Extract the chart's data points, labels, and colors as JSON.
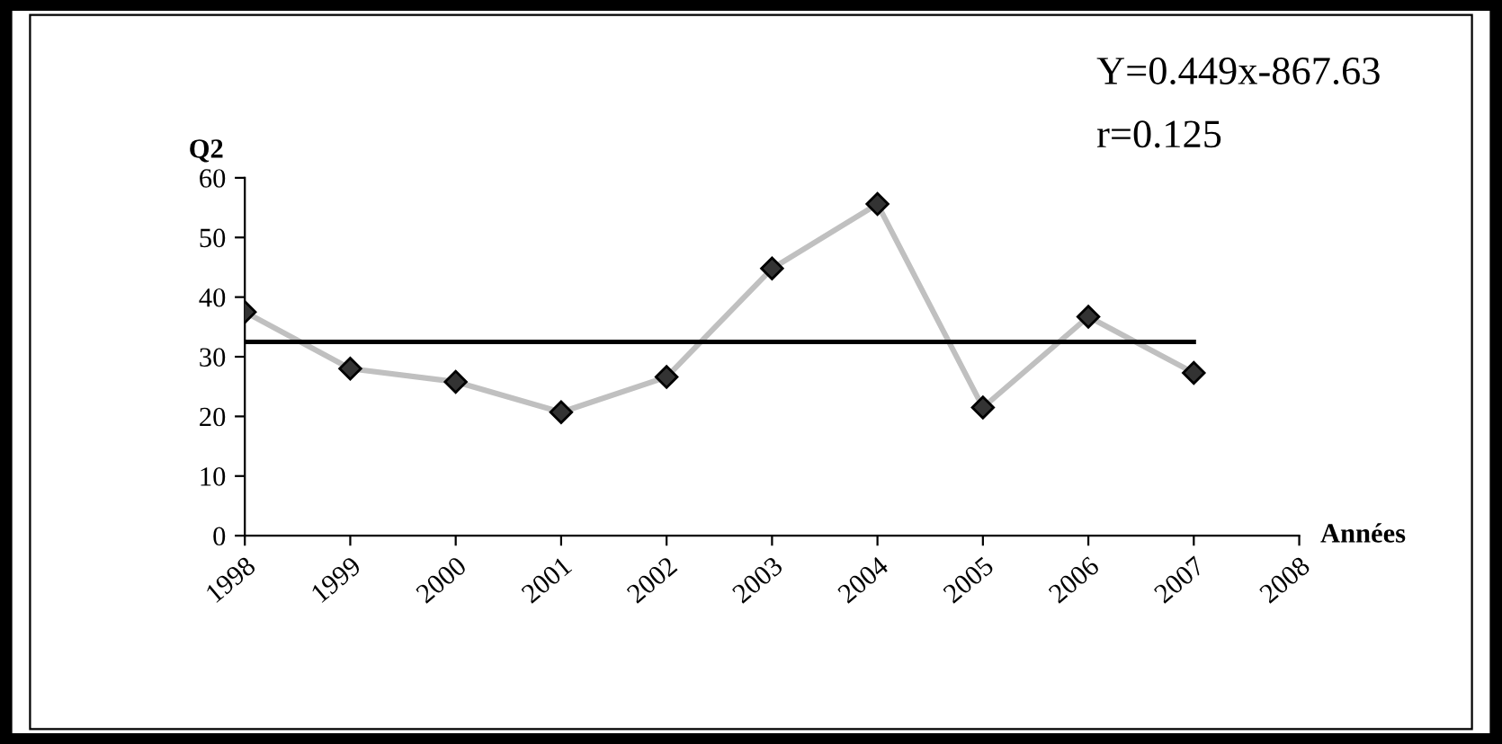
{
  "chart_data": {
    "type": "line",
    "ylabel": "Q2",
    "xlabel": "Années",
    "categories": [
      "1998",
      "1999",
      "2000",
      "2001",
      "2002",
      "2003",
      "2004",
      "2005",
      "2006",
      "2007",
      "2008"
    ],
    "series": [
      {
        "color": "#c0c0c0",
        "values": [
          37.5,
          28,
          25.8,
          20.7,
          26.6,
          44.8,
          55.6,
          21.5,
          36.7,
          27.3,
          null
        ],
        "marker": "diamond"
      },
      {
        "color": "#000000",
        "values": [
          32.5,
          32.5,
          32.5,
          32.5,
          32.5,
          32.5,
          32.5,
          32.5,
          32.5,
          32.5,
          null
        ],
        "marker": "none"
      }
    ],
    "ylim": [
      0,
      60
    ],
    "yticks": [
      0,
      10,
      20,
      30,
      40,
      50,
      60
    ],
    "grid": false,
    "line_style": "solid",
    "annotations": [
      "Y=0.449x-867.63",
      "r=0.125"
    ]
  }
}
